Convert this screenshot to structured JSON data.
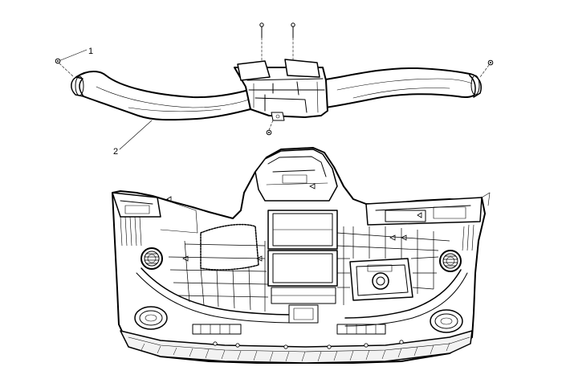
{
  "callouts": {
    "one": "1",
    "two": "2"
  },
  "parts": {
    "duct": "instrument-panel-air-distribution-duct",
    "fastener": "duct-screw",
    "panel": "instrument-panel-carrier"
  }
}
